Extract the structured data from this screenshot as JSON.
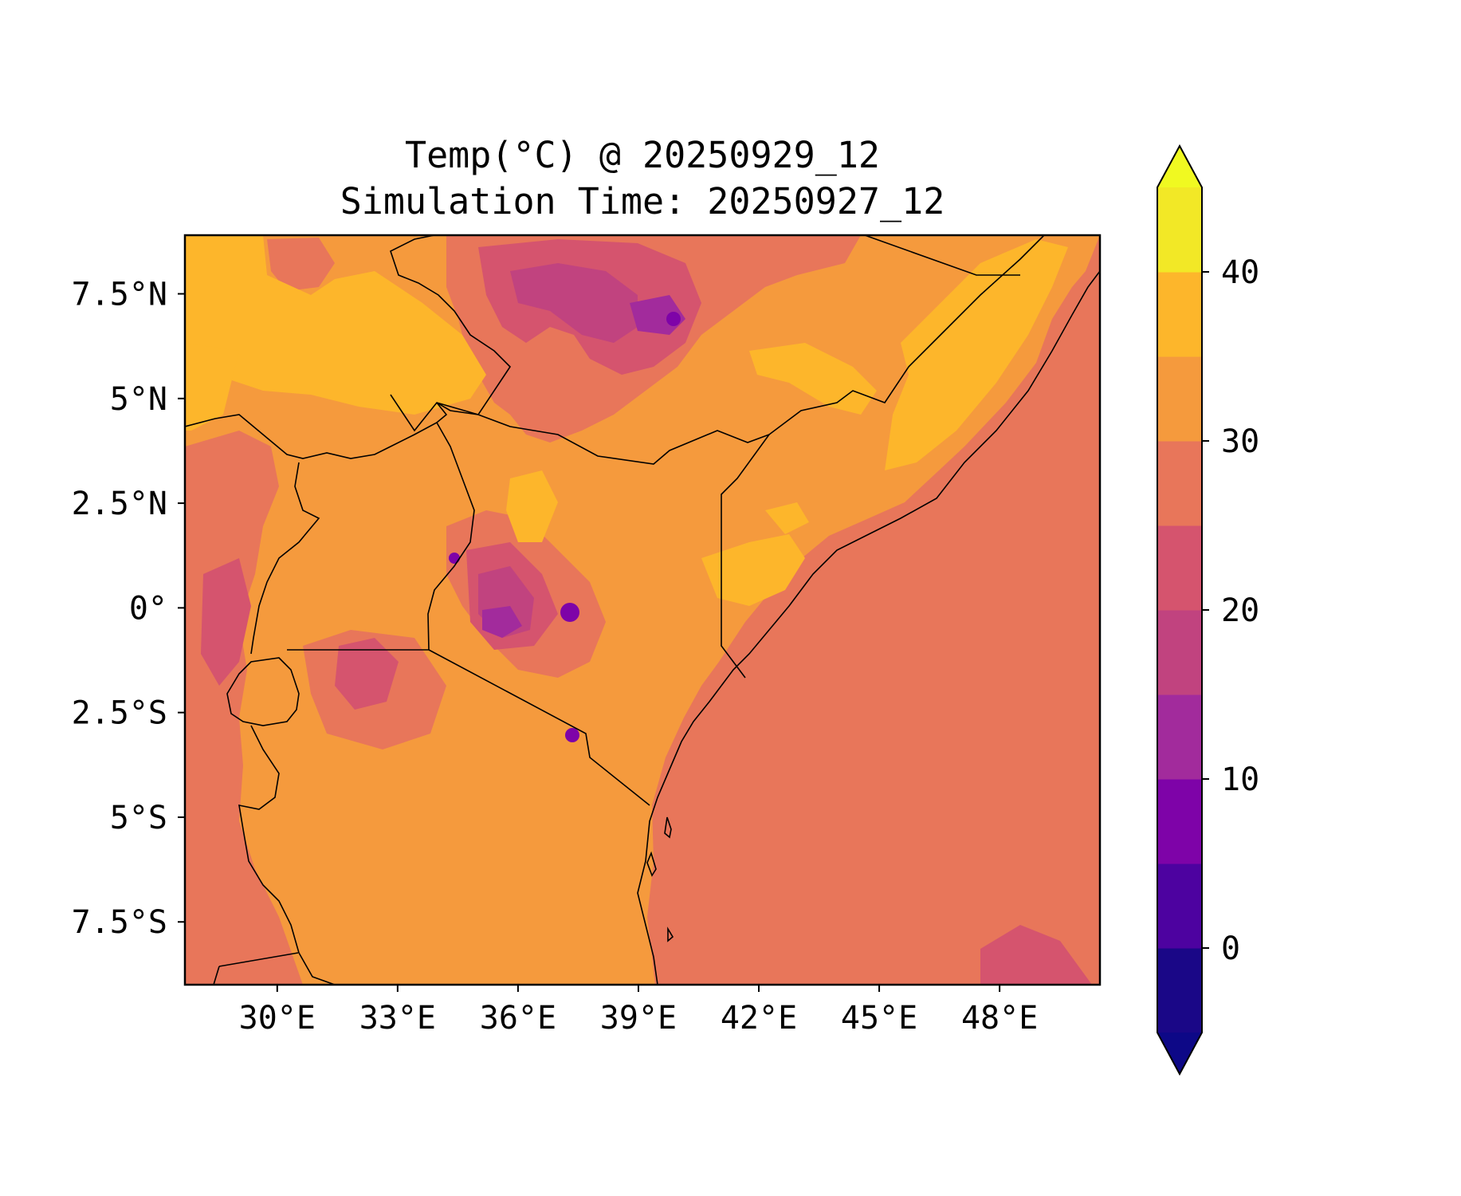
{
  "title": {
    "line1": "Temp(°C) @ 20250929_12",
    "line2": "Simulation Time: 20250927_12"
  },
  "map": {
    "variable": "Temp(°C)",
    "lon_range": [
      27.7,
      50.5
    ],
    "lat_range": [
      -9.0,
      8.9
    ],
    "lon_ticks": [
      {
        "value": 30,
        "label": "30°E"
      },
      {
        "value": 33,
        "label": "33°E"
      },
      {
        "value": 36,
        "label": "36°E"
      },
      {
        "value": 39,
        "label": "39°E"
      },
      {
        "value": 42,
        "label": "42°E"
      },
      {
        "value": 45,
        "label": "45°E"
      },
      {
        "value": 48,
        "label": "48°E"
      }
    ],
    "lat_ticks": [
      {
        "value": 7.5,
        "label": "7.5°N"
      },
      {
        "value": 5,
        "label": "5°N"
      },
      {
        "value": 2.5,
        "label": "2.5°N"
      },
      {
        "value": 0,
        "label": "0°"
      },
      {
        "value": -2.5,
        "label": "2.5°S"
      },
      {
        "value": -5,
        "label": "5°S"
      },
      {
        "value": -7.5,
        "label": "7.5°S"
      }
    ]
  },
  "colorbar": {
    "levels": [
      -5,
      0,
      5,
      10,
      15,
      20,
      25,
      30,
      35,
      40,
      45
    ],
    "colors": [
      "#1a0787",
      "#4d02a0",
      "#7e03a8",
      "#a22b9c",
      "#c1437f",
      "#d5546e",
      "#e8765a",
      "#f59a3d",
      "#fdb62b",
      "#f2e826"
    ],
    "under_color": "#0d0887",
    "over_color": "#f0f921",
    "tick_labels": [
      {
        "value": 0,
        "label": "0"
      },
      {
        "value": 10,
        "label": "10"
      },
      {
        "value": 20,
        "label": "20"
      },
      {
        "value": 30,
        "label": "30"
      },
      {
        "value": 40,
        "label": "40"
      }
    ]
  }
}
